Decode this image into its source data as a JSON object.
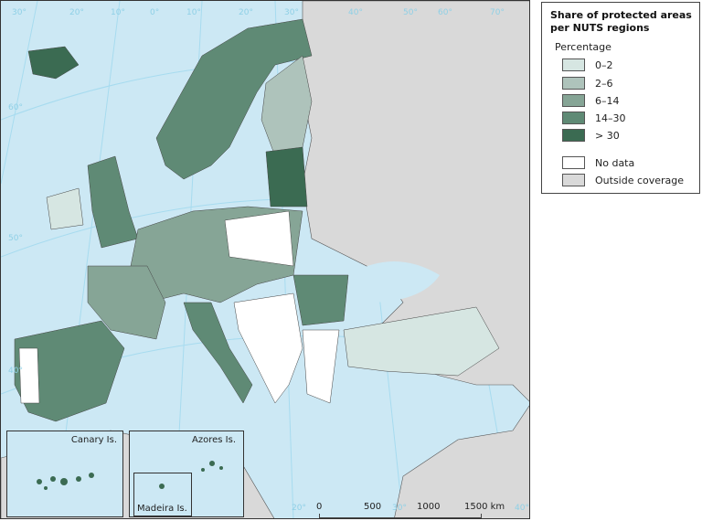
{
  "legend": {
    "title": "Share of protected areas per NUTS regions",
    "subtitle": "Percentage",
    "classes": [
      {
        "label": "0–2",
        "color": "#d6e6e2"
      },
      {
        "label": "2–6",
        "color": "#aec3bb"
      },
      {
        "label": "6–14",
        "color": "#86a596"
      },
      {
        "label": "14–30",
        "color": "#5f8a75"
      },
      {
        "label": "> 30",
        "color": "#3b6b52"
      }
    ],
    "other": [
      {
        "label": "No data",
        "color": "#ffffff"
      },
      {
        "label": "Outside coverage",
        "color": "#d9d9d9"
      }
    ]
  },
  "map": {
    "sea_color": "#cce8f4",
    "graticule_top": [
      "30°",
      "20°",
      "10°",
      "0°",
      "10°",
      "20°",
      "30°",
      "40°",
      "50°",
      "60°",
      "70°"
    ],
    "graticule_left": [
      "60°",
      "50°",
      "40°"
    ],
    "insets": [
      "Canary Is.",
      "Azores Is.",
      "Madeira Is."
    ],
    "scale_bar": {
      "ticks": [
        "0",
        "500",
        "1000",
        "1500"
      ],
      "unit": "km"
    },
    "graticule_bottom": [
      "20°",
      "30°",
      "40°"
    ]
  }
}
